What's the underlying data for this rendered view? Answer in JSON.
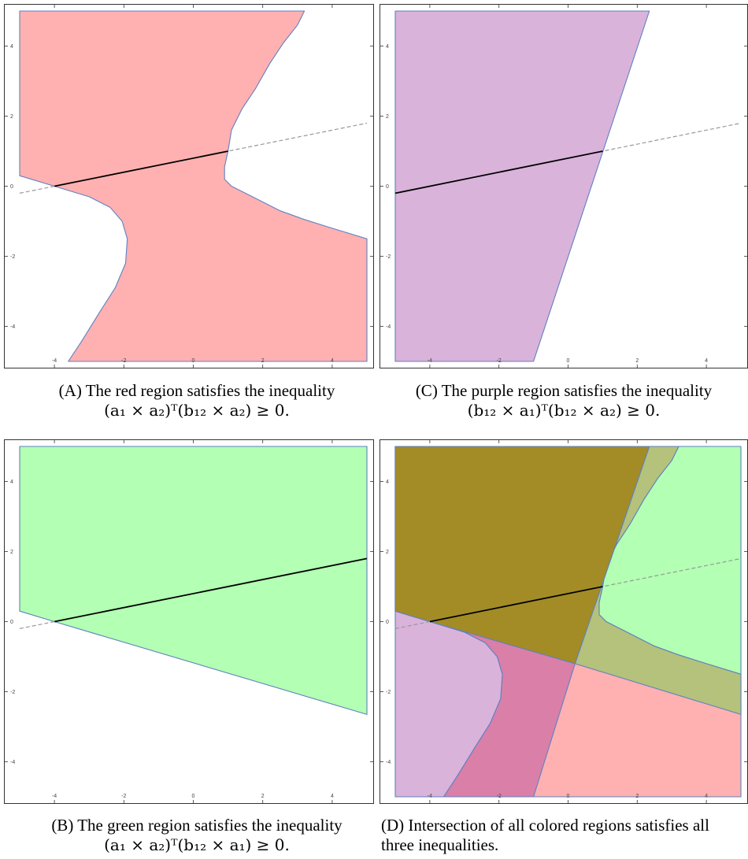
{
  "colors": {
    "red_fill": "#ffb1b1",
    "purple_fill": "#d9b3da",
    "green_fill": "#b3ffb3",
    "olive_fill": "#a38c26",
    "olive_green_fill": "#b4c27b",
    "magenta_fill": "#da7fa8",
    "boundary": "#5f81c1",
    "solid_line": "#000000",
    "dashed_line": "#999999"
  },
  "chart_data": [
    {
      "id": "A",
      "type": "area",
      "xlim": [
        -5,
        5
      ],
      "ylim": [
        -5,
        5
      ],
      "x_ticks": [
        -4,
        -2,
        0,
        2,
        4
      ],
      "y_ticks": [
        -4,
        -2,
        0,
        2,
        4
      ],
      "tick_labels": [
        "-4",
        "-2",
        "0",
        "2",
        "4"
      ],
      "region": {
        "fill": "red",
        "boundary": [
          [
            -5,
            5
          ],
          [
            3.2,
            5
          ],
          [
            3.0,
            4.6
          ],
          [
            2.6,
            4.1
          ],
          [
            2.2,
            3.5
          ],
          [
            1.8,
            2.8
          ],
          [
            1.4,
            2.2
          ],
          [
            1.1,
            1.6
          ],
          [
            1.0,
            1.0
          ],
          [
            0.9,
            0.55
          ],
          [
            0.9,
            0.2
          ],
          [
            1.1,
            0.0
          ],
          [
            1.5,
            -0.2
          ],
          [
            2.0,
            -0.45
          ],
          [
            2.5,
            -0.7
          ],
          [
            3.2,
            -0.95
          ],
          [
            4.0,
            -1.2
          ],
          [
            5,
            -1.5
          ],
          [
            5,
            -5
          ],
          [
            -3.6,
            -5
          ],
          [
            -3.2,
            -4.4
          ],
          [
            -2.7,
            -3.6
          ],
          [
            -2.25,
            -2.9
          ],
          [
            -1.95,
            -2.2
          ],
          [
            -1.9,
            -1.5
          ],
          [
            -2.05,
            -1.0
          ],
          [
            -2.4,
            -0.6
          ],
          [
            -3.0,
            -0.3
          ],
          [
            -4.0,
            0.0
          ],
          [
            -5,
            0.3
          ]
        ]
      },
      "segment": [
        [
          -4,
          0
        ],
        [
          1,
          1
        ]
      ],
      "dashed_line": [
        [
          -5,
          -0.2
        ],
        [
          5,
          1.8
        ]
      ],
      "caption": {
        "label": "(A)",
        "text": "The red region satisfies the inequality",
        "formula": "(a₁ × a₂)ᵀ(b₁₂ × a₂) ≥ 0."
      }
    },
    {
      "id": "C",
      "type": "area",
      "xlim": [
        -5,
        5
      ],
      "ylim": [
        -5,
        5
      ],
      "x_ticks": [
        -4,
        -2,
        0,
        2,
        4
      ],
      "y_ticks": [
        -4,
        -2,
        0,
        2,
        4
      ],
      "tick_labels": [
        "-4",
        "-2",
        "0",
        "2",
        "4"
      ],
      "region": {
        "fill": "purple",
        "boundary": [
          [
            -5,
            5
          ],
          [
            2.35,
            5
          ],
          [
            -1.0,
            -5
          ],
          [
            -5,
            -5
          ]
        ]
      },
      "segment": [
        [
          -5,
          -0.2
        ],
        [
          1,
          1
        ]
      ],
      "dashed_line": [
        [
          -5,
          -0.2
        ],
        [
          5,
          1.8
        ]
      ],
      "caption": {
        "label": "(C)",
        "text": "The purple region satisfies the inequality",
        "formula": "(b₁₂ × a₁)ᵀ(b₁₂ × a₂) ≥ 0."
      }
    },
    {
      "id": "B",
      "type": "area",
      "xlim": [
        -5,
        5
      ],
      "ylim": [
        -5,
        5
      ],
      "x_ticks": [
        -4,
        -2,
        0,
        2,
        4
      ],
      "y_ticks": [
        -4,
        -2,
        0,
        2,
        4
      ],
      "tick_labels": [
        "-4",
        "-2",
        "0",
        "2",
        "4"
      ],
      "region": {
        "fill": "green",
        "boundary": [
          [
            -5,
            5
          ],
          [
            5,
            5
          ],
          [
            5,
            -2.65
          ],
          [
            -4,
            0
          ],
          [
            -5,
            0.3
          ]
        ]
      },
      "segment": [
        [
          -4,
          0
        ],
        [
          5,
          1.8
        ]
      ],
      "dashed_line": [
        [
          -5,
          -0.2
        ],
        [
          5,
          1.8
        ]
      ],
      "caption": {
        "label": "(B)",
        "text": "The green region satisfies the inequality",
        "formula": "(a₁ × a₂)ᵀ(b₁₂ × a₁) ≥ 0."
      }
    },
    {
      "id": "D",
      "type": "area",
      "xlim": [
        -5,
        5
      ],
      "ylim": [
        -5,
        5
      ],
      "x_ticks": [
        -4,
        -2,
        0,
        2,
        4
      ],
      "y_ticks": [
        -4,
        -2,
        0,
        2,
        4
      ],
      "tick_labels": [
        "-4",
        "-2",
        "0",
        "2",
        "4"
      ],
      "regions": [
        {
          "fill": "purple",
          "boundary": [
            [
              -5,
              5
            ],
            [
              2.35,
              5
            ],
            [
              -1.0,
              -5
            ],
            [
              -5,
              -5
            ]
          ]
        },
        {
          "fill": "green",
          "boundary": [
            [
              -5,
              5
            ],
            [
              5,
              5
            ],
            [
              5,
              -2.65
            ],
            [
              -4,
              0
            ],
            [
              -5,
              0.3
            ]
          ]
        },
        {
          "fill": "red",
          "boundary": [
            [
              -5,
              5
            ],
            [
              3.2,
              5
            ],
            [
              3.0,
              4.6
            ],
            [
              2.6,
              4.1
            ],
            [
              2.2,
              3.5
            ],
            [
              1.8,
              2.8
            ],
            [
              1.4,
              2.2
            ],
            [
              1.1,
              1.6
            ],
            [
              1.0,
              1.0
            ],
            [
              0.9,
              0.55
            ],
            [
              0.9,
              0.2
            ],
            [
              1.1,
              0.0
            ],
            [
              1.5,
              -0.2
            ],
            [
              2.0,
              -0.45
            ],
            [
              2.5,
              -0.7
            ],
            [
              3.2,
              -0.95
            ],
            [
              4.0,
              -1.2
            ],
            [
              5,
              -1.5
            ],
            [
              5,
              -5
            ],
            [
              -3.6,
              -5
            ],
            [
              -3.2,
              -4.4
            ],
            [
              -2.7,
              -3.6
            ],
            [
              -2.25,
              -2.9
            ],
            [
              -1.95,
              -2.2
            ],
            [
              -1.9,
              -1.5
            ],
            [
              -2.05,
              -1.0
            ],
            [
              -2.4,
              -0.6
            ],
            [
              -3.0,
              -0.3
            ],
            [
              -4.0,
              0.0
            ],
            [
              -5,
              0.3
            ]
          ]
        }
      ],
      "overlap_regions": [
        {
          "fill": "olive_green",
          "boundary": [
            [
              2.35,
              5
            ],
            [
              3.2,
              5
            ],
            [
              3.0,
              4.6
            ],
            [
              2.6,
              4.1
            ],
            [
              2.2,
              3.5
            ],
            [
              1.8,
              2.8
            ],
            [
              1.4,
              2.2
            ],
            [
              1.1,
              1.6
            ],
            [
              1.0,
              1.0
            ],
            [
              0.9,
              0.55
            ],
            [
              0.9,
              0.2
            ],
            [
              1.1,
              0.0
            ],
            [
              1.5,
              -0.2
            ],
            [
              2.0,
              -0.45
            ],
            [
              2.5,
              -0.7
            ],
            [
              3.2,
              -0.95
            ],
            [
              4.0,
              -1.2
            ],
            [
              5,
              -1.5
            ],
            [
              5,
              -2.65
            ],
            [
              0.2,
              -1.2
            ]
          ]
        },
        {
          "fill": "magenta",
          "boundary": [
            [
              -1.0,
              -5
            ],
            [
              -3.6,
              -5
            ],
            [
              -3.2,
              -4.4
            ],
            [
              -2.7,
              -3.6
            ],
            [
              -2.25,
              -2.9
            ],
            [
              -1.95,
              -2.2
            ],
            [
              -1.9,
              -1.5
            ],
            [
              -2.05,
              -1.0
            ],
            [
              -2.4,
              -0.6
            ],
            [
              -3.0,
              -0.3
            ],
            [
              -4.0,
              0.0
            ],
            [
              0.2,
              -1.2
            ]
          ]
        },
        {
          "fill": "olive",
          "boundary": [
            [
              -5,
              5
            ],
            [
              2.35,
              5
            ],
            [
              0.2,
              -1.2
            ],
            [
              -4.0,
              0.0
            ],
            [
              -5,
              0.3
            ]
          ]
        }
      ],
      "segment": [
        [
          -4,
          0
        ],
        [
          1,
          1
        ]
      ],
      "dashed_line": [
        [
          -5,
          -0.2
        ],
        [
          5,
          1.8
        ]
      ],
      "caption": {
        "label": "(D)",
        "text_line1": "Intersection of all colored regions satisfies all",
        "text_line2": "three inequalities."
      }
    }
  ]
}
